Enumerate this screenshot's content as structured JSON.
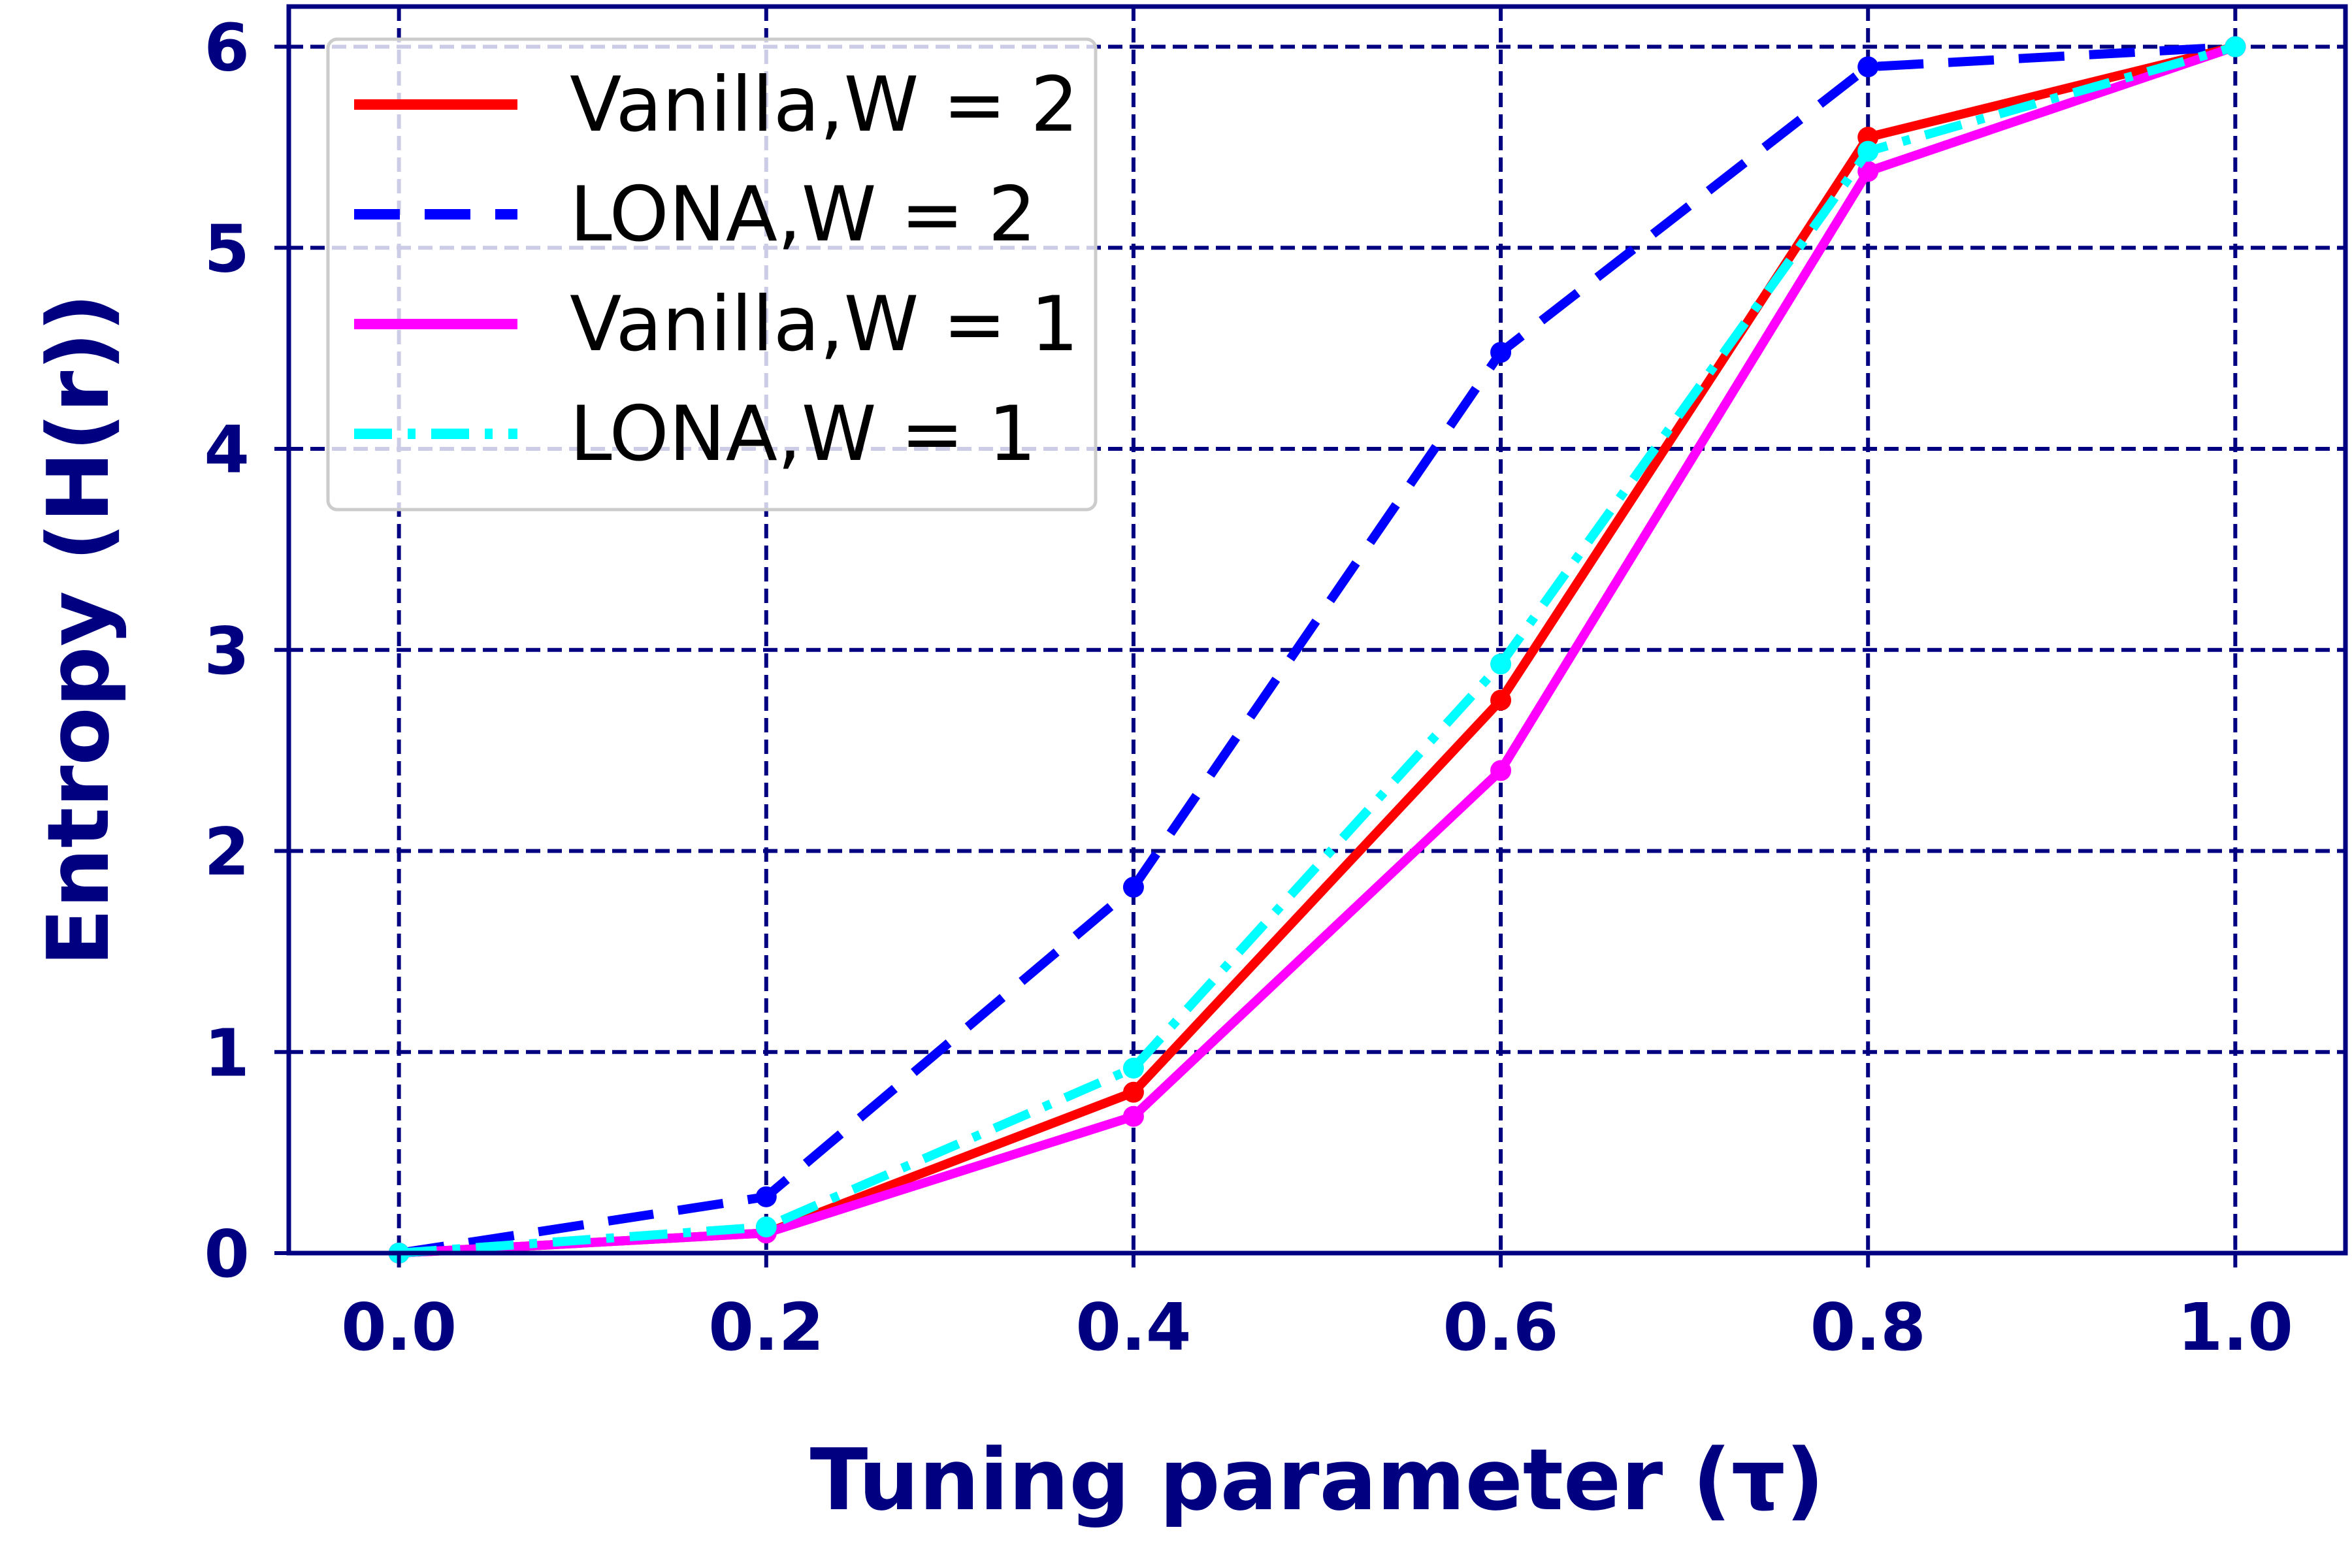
{
  "chart_data": {
    "type": "line",
    "xlabel": "Tuning parameter (τ)",
    "ylabel": "Entropy (H(r))",
    "x": [
      0.0,
      0.2,
      0.4,
      0.6,
      0.8,
      1.0
    ],
    "xlim": [
      -0.06,
      1.06
    ],
    "ylim": [
      0,
      6.2
    ],
    "xticks": [
      "0.0",
      "0.2",
      "0.4",
      "0.6",
      "0.8",
      "1.0"
    ],
    "yticks": [
      "0",
      "1",
      "2",
      "3",
      "4",
      "5",
      "6"
    ],
    "grid": true,
    "grid_style": "dashed",
    "legend_position": "top-left",
    "axis_color": "#000080",
    "series": [
      {
        "name": "Vanilla,W = 2",
        "values": [
          0.0,
          0.1,
          0.8,
          2.75,
          5.55,
          6.0
        ],
        "color": "#ff0000",
        "dash": "solid"
      },
      {
        "name": "LONA,W = 2",
        "values": [
          0.0,
          0.28,
          1.82,
          4.48,
          5.9,
          6.0
        ],
        "color": "#0000ff",
        "dash": "dashed"
      },
      {
        "name": "Vanilla,W = 1",
        "values": [
          0.0,
          0.1,
          0.68,
          2.4,
          5.38,
          6.0
        ],
        "color": "#ff00ff",
        "dash": "solid"
      },
      {
        "name": "LONA,W = 1",
        "values": [
          0.0,
          0.13,
          0.92,
          2.93,
          5.48,
          6.0
        ],
        "color": "#00ffff",
        "dash": "dashdot"
      }
    ]
  }
}
